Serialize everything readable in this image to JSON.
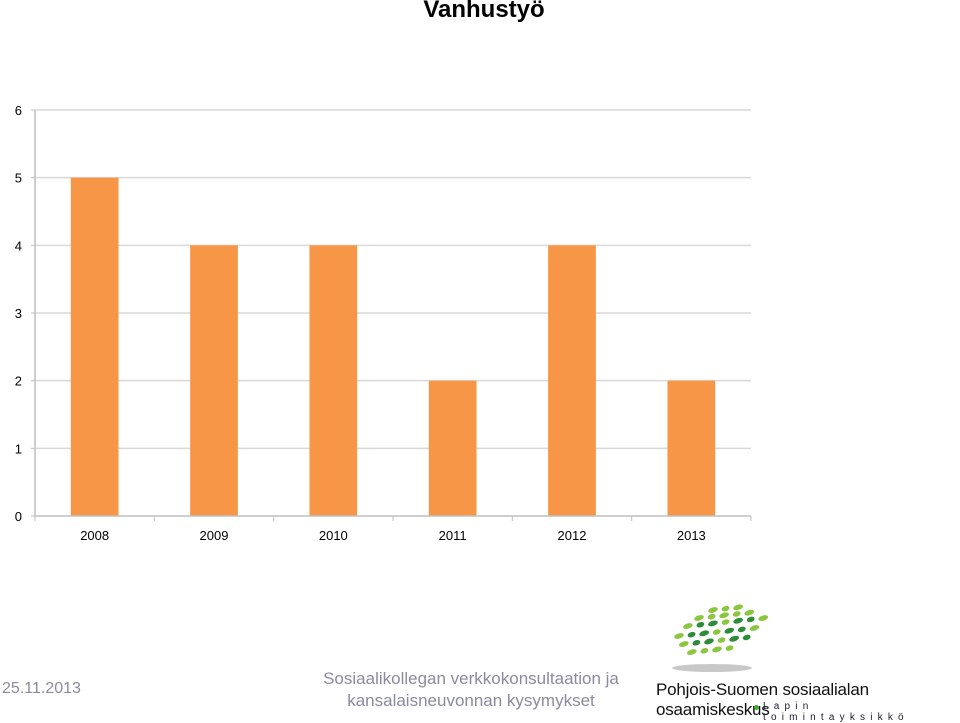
{
  "chart_data": {
    "type": "bar",
    "title": "Vanhustyö",
    "categories": [
      "2008",
      "2009",
      "2010",
      "2011",
      "2012",
      "2013"
    ],
    "values": [
      5,
      4,
      4,
      2,
      4,
      2
    ],
    "ylim": [
      0,
      6
    ],
    "yticks": [
      0,
      1,
      2,
      3,
      4,
      5,
      6
    ],
    "grid": true,
    "legend": "none",
    "bar_color": "#f79646",
    "grid_color": "#d9d9d9"
  },
  "footer": {
    "date": "25.11.2013",
    "caption_line1": "Sosiaalikollegan verkkokonsultaation ja",
    "caption_line2": "kansalaisneuvonnan kysymykset",
    "organization": "Pohjois-Suomen sosiaalialan osaamiskeskus",
    "unit": "Lapin toimintayksikkö"
  },
  "colors": {
    "footer_text": "#8a8aa0",
    "logo_green_dark": "#2e8b3a",
    "logo_green_light": "#8cc63f"
  }
}
